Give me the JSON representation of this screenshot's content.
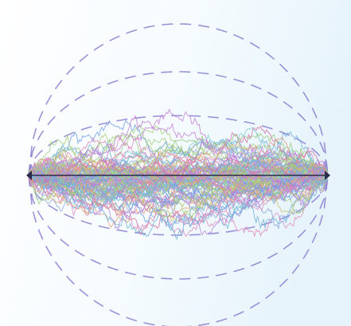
{
  "figure": {
    "description_visible_text": "",
    "walk_count": 96,
    "palette": [
      "#e08bbd",
      "#9ac77e",
      "#8fa8e0",
      "#c9c06a",
      "#7fd0cf",
      "#b18be0",
      "#e2a17a",
      "#6f9ee6",
      "#d36fa6",
      "#a2cf7a",
      "#6fb1d8",
      "#c47fd8"
    ],
    "background_gradient": [
      "#ffffff",
      "#f5fbfe",
      "#e6f3fb"
    ],
    "envelope_color": "#8b7fd0",
    "center_line_color": "#2a2a4a"
  }
}
